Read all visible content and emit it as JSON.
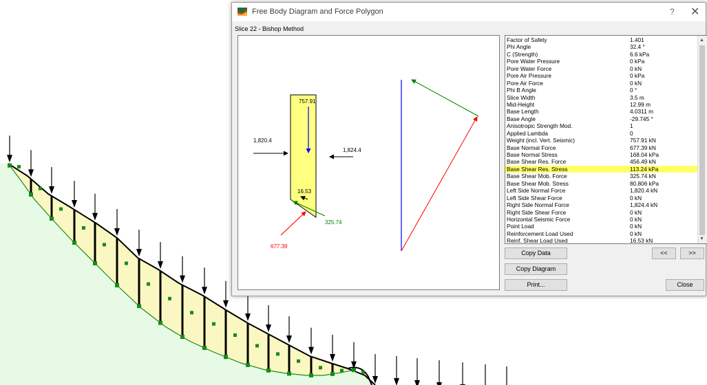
{
  "dialog": {
    "title": "Free Body Diagram and Force Polygon",
    "help_glyph": "?",
    "close_glyph": "✕",
    "slice_label": "Slice  22 - Bishop  Method",
    "icon": "app-icon"
  },
  "diagram": {
    "weight_label": "757.91",
    "left_force_label": "1,820.4",
    "right_force_label": "1,824.4",
    "shear_label": "16.53",
    "base_mob_label": "325.74",
    "base_normal_label": "677.39"
  },
  "properties": [
    {
      "name": "Factor of Safety",
      "value": "1.401"
    },
    {
      "name": "Phi Angle",
      "value": "32.4 °"
    },
    {
      "name": "C (Strength)",
      "value": "6.6 kPa"
    },
    {
      "name": "Pore Water Pressure",
      "value": "0 kPa"
    },
    {
      "name": "Pore Water Force",
      "value": "0 kN"
    },
    {
      "name": "Pore Air Pressure",
      "value": "0 kPa"
    },
    {
      "name": "Pore Air Force",
      "value": "0 kN"
    },
    {
      "name": "Phi B Angle",
      "value": "0 °"
    },
    {
      "name": "Slice Width",
      "value": "3.5 m"
    },
    {
      "name": "Mid-Height",
      "value": "12.99 m"
    },
    {
      "name": "Base Length",
      "value": "4.0311 m"
    },
    {
      "name": "Base Angle",
      "value": "-29.745 °"
    },
    {
      "name": "Anisotropic Strength Mod.",
      "value": "1"
    },
    {
      "name": "Applied Lambda",
      "value": "0"
    },
    {
      "name": "Weight (incl. Vert. Seismic)",
      "value": "757.91 kN"
    },
    {
      "name": "Base Normal Force",
      "value": "677.39 kN"
    },
    {
      "name": "Base Normal Stress",
      "value": "168.04 kPa"
    },
    {
      "name": "Base Shear Res. Force",
      "value": "456.49 kN"
    },
    {
      "name": "Base Shear Res. Stress",
      "value": "113.24 kPa"
    },
    {
      "name": "Base Shear Mob. Force",
      "value": "325.74 kN"
    },
    {
      "name": "Base Shear Mob. Stress",
      "value": "80.806 kPa"
    },
    {
      "name": "Left Side Normal Force",
      "value": "1,820.4 kN"
    },
    {
      "name": "Left Side Shear Force",
      "value": "0 kN"
    },
    {
      "name": "Right Side Normal Force",
      "value": "1,824.4 kN"
    },
    {
      "name": "Right Side Shear Force",
      "value": "0 kN"
    },
    {
      "name": "Horizontal Seismic Force",
      "value": "0 kN"
    },
    {
      "name": "Point Load",
      "value": "0 kN"
    },
    {
      "name": "Reinforcement Load Used",
      "value": "0 kN"
    },
    {
      "name": "Reinf. Shear Load Used",
      "value": "16.53 kN"
    }
  ],
  "highlighted_row": "Base Shear Res. Stress",
  "buttons": {
    "copy_data": "Copy Data",
    "copy_diagram": "Copy Diagram",
    "print": "Print...",
    "prev": "<<",
    "next": ">>",
    "close": "Close"
  },
  "colors": {
    "slice_fill": "#ffff80",
    "slope_fill": "#e6fae6",
    "normal_force": "#ff0000",
    "shear_force": "#008000",
    "weight_force": "#0000ff",
    "highlight": "#ffff66"
  }
}
